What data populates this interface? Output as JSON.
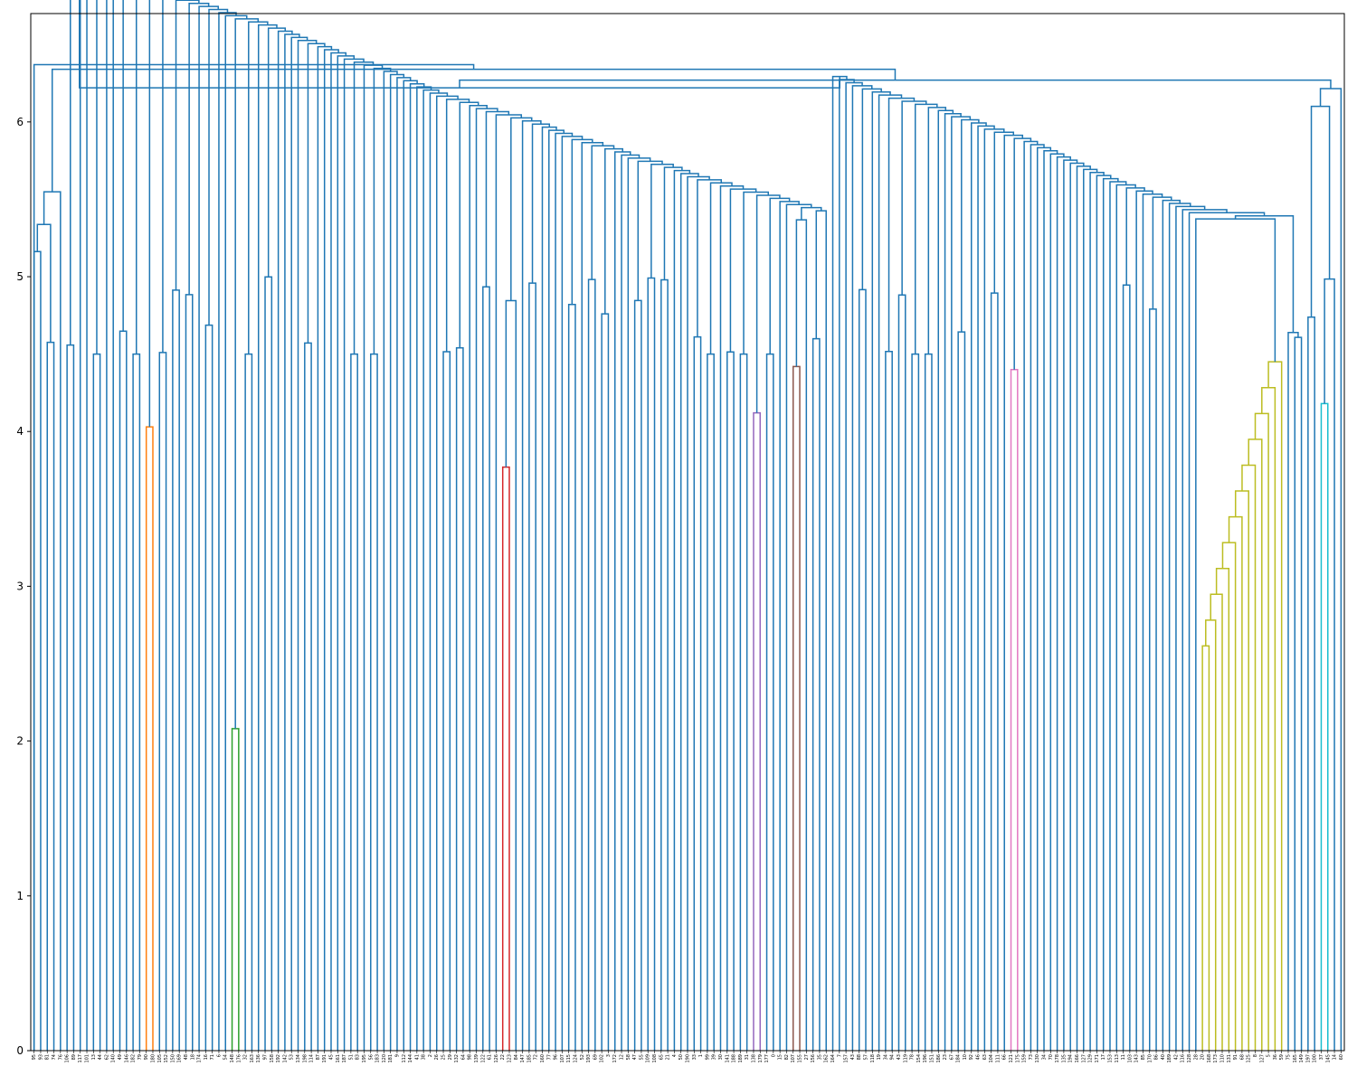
{
  "chart_data": {
    "type": "dendrogram",
    "title": "",
    "xlabel": "",
    "ylabel": "",
    "ylim": [
      0,
      6.7
    ],
    "yticks": [
      "0",
      "1",
      "2",
      "3",
      "4",
      "5",
      "6"
    ],
    "grid": false,
    "legend": "none",
    "colors": {
      "above_threshold": "#1f77b4",
      "orange": "#ff7f0e",
      "green": "#2ca02c",
      "red": "#d62728",
      "purple": "#9467bd",
      "brown": "#8c564b",
      "pink": "#e377c2",
      "olive": "#bcbd22",
      "cyan": "#17becf"
    },
    "leaves": [
      "95",
      "93",
      "81",
      "74",
      "76",
      "106",
      "89",
      "117",
      "101",
      "13",
      "44",
      "62",
      "140",
      "49",
      "146",
      "182",
      "79",
      "90",
      "180",
      "105",
      "152",
      "150",
      "169",
      "48",
      "18",
      "174",
      "16",
      "71",
      "6",
      "54",
      "148",
      "176",
      "32",
      "163",
      "136",
      "97",
      "158",
      "192",
      "142",
      "53",
      "134",
      "198",
      "114",
      "87",
      "191",
      "45",
      "161",
      "187",
      "51",
      "83",
      "195",
      "56",
      "183",
      "120",
      "181",
      "9",
      "112",
      "144",
      "41",
      "38",
      "2",
      "26",
      "25",
      "29",
      "132",
      "64",
      "98",
      "139",
      "122",
      "61",
      "126",
      "22",
      "123",
      "84",
      "147",
      "185",
      "72",
      "160",
      "77",
      "96",
      "107",
      "115",
      "124",
      "52",
      "193",
      "69",
      "102",
      "3",
      "172",
      "12",
      "58",
      "47",
      "55",
      "109",
      "108",
      "65",
      "21",
      "4",
      "50",
      "190",
      "33",
      "1",
      "99",
      "39",
      "30",
      "141",
      "188",
      "189",
      "31",
      "138",
      "179",
      "177",
      "0",
      "15",
      "82",
      "107",
      "155",
      "27",
      "156",
      "35",
      "162",
      "164",
      "7",
      "157",
      "43",
      "88",
      "57",
      "118",
      "19",
      "34",
      "94",
      "43",
      "119",
      "78",
      "154",
      "196",
      "151",
      "186",
      "23",
      "67",
      "184",
      "10",
      "92",
      "46",
      "63",
      "104",
      "111",
      "66",
      "121",
      "175",
      "159",
      "73",
      "130",
      "34",
      "70",
      "178",
      "135",
      "194",
      "166",
      "127",
      "129",
      "171",
      "17",
      "153",
      "113",
      "11",
      "103",
      "143",
      "85",
      "170",
      "86",
      "40",
      "189",
      "42",
      "116",
      "128",
      "28",
      "20",
      "168",
      "173",
      "110",
      "131",
      "91",
      "68",
      "125",
      "8",
      "127",
      "5",
      "36",
      "59",
      "75",
      "165",
      "149",
      "197",
      "100",
      "37",
      "145",
      "14",
      "60"
    ],
    "link_color_groups": [
      {
        "color": "orange",
        "leaves": [
          "90",
          "180"
        ],
        "height": 4.03
      },
      {
        "color": "green",
        "leaves": [
          "148",
          "176"
        ],
        "height": 2.08
      },
      {
        "color": "red",
        "leaves": [
          "22",
          "123"
        ],
        "height": 3.77
      },
      {
        "color": "purple",
        "leaves": [
          "138",
          "179"
        ],
        "height": 4.12
      },
      {
        "color": "brown",
        "leaves": [
          "107",
          "155"
        ],
        "height": 4.42
      },
      {
        "color": "pink",
        "leaves": [
          "121",
          "175"
        ],
        "height": 4.4
      },
      {
        "color": "olive",
        "leaves": [
          "20",
          "168",
          "173",
          "110",
          "131",
          "91",
          "68",
          "125",
          "8",
          "127",
          "5",
          "36",
          "59"
        ],
        "height": 4.45
      },
      {
        "color": "cyan",
        "leaves": [
          "37",
          "145"
        ],
        "height": 4.18
      }
    ],
    "root_height": 6.37,
    "top_merge_heights": [
      6.37,
      6.34,
      6.27,
      6.22
    ]
  }
}
